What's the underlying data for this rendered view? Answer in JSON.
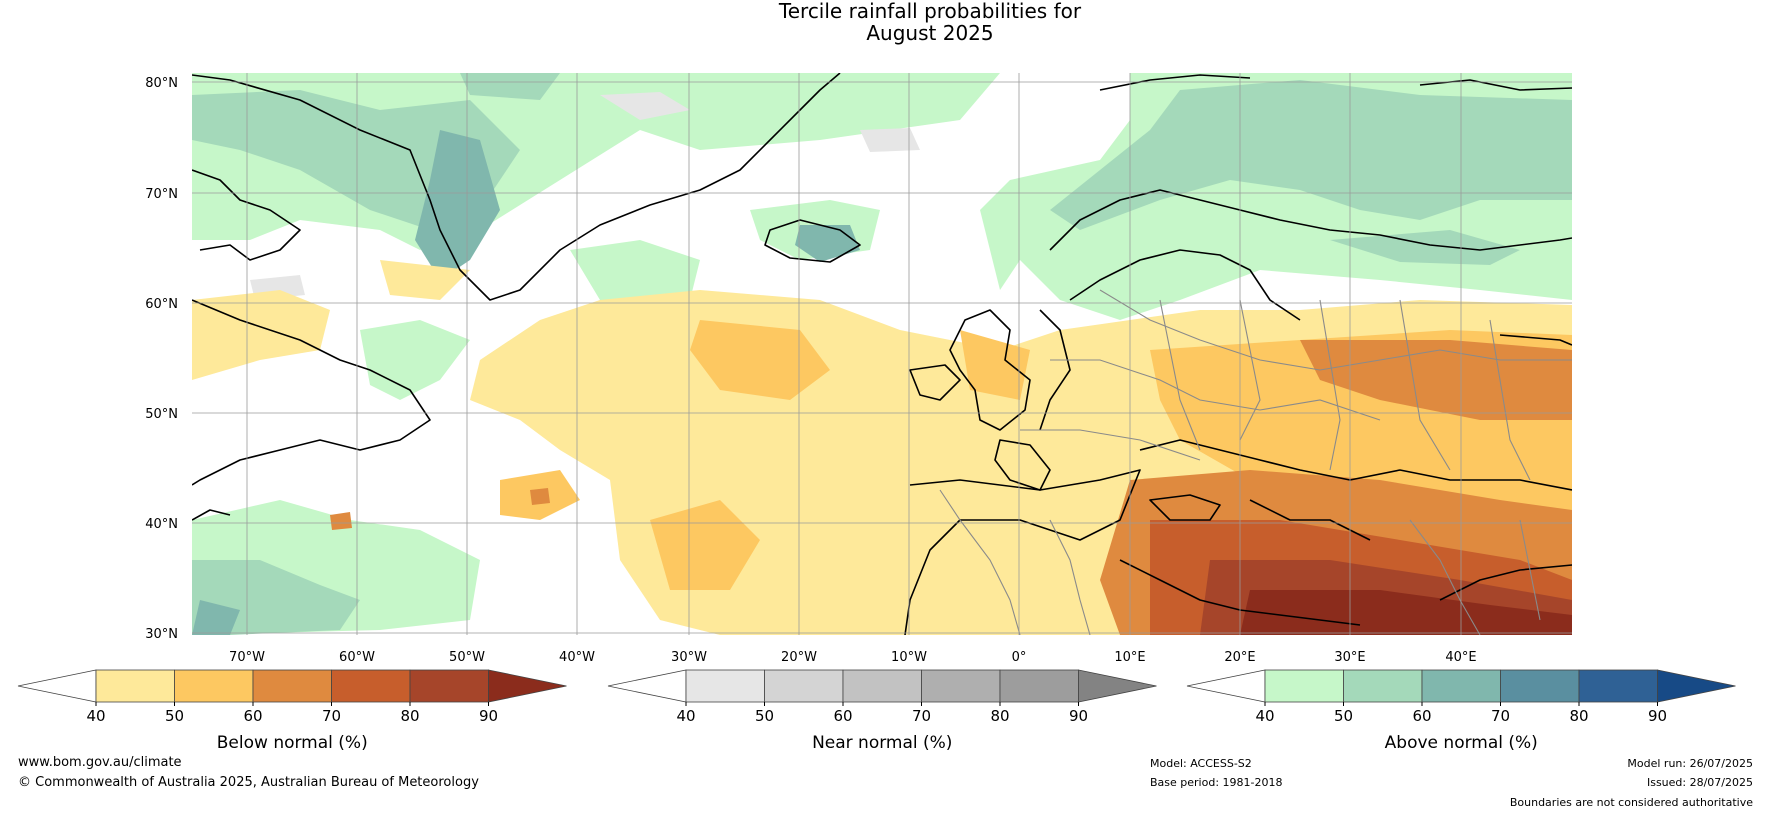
{
  "title": {
    "line1": "Tercile rainfall probabilities for",
    "line2": "August 2025"
  },
  "map": {
    "lat_labels": [
      "80°N",
      "70°N",
      "60°N",
      "50°N",
      "40°N",
      "30°N"
    ],
    "lon_labels": [
      "70°W",
      "60°W",
      "50°W",
      "40°W",
      "30°W",
      "20°W",
      "10°W",
      "0°",
      "10°E",
      "20°E",
      "30°E",
      "40°E"
    ],
    "gridlines": true
  },
  "colorbars": [
    {
      "title": "Below normal (%)",
      "ticks": [
        "40",
        "50",
        "60",
        "70",
        "80",
        "90"
      ],
      "colors": [
        "#ffffff",
        "#fee99a",
        "#fdc861",
        "#df8a3f",
        "#c75e2c",
        "#a6452a",
        "#8b2c1c"
      ]
    },
    {
      "title": "Near normal (%)",
      "ticks": [
        "40",
        "50",
        "60",
        "70",
        "80",
        "90"
      ],
      "colors": [
        "#ffffff",
        "#e6e6e6",
        "#d4d4d4",
        "#c2c2c2",
        "#afafaf",
        "#9d9d9d",
        "#838383"
      ]
    },
    {
      "title": "Above normal (%)",
      "ticks": [
        "40",
        "50",
        "60",
        "70",
        "80",
        "90"
      ],
      "colors": [
        "#ffffff",
        "#c6f7c9",
        "#a4d9ba",
        "#80b7ad",
        "#5a8fa0",
        "#2f6195",
        "#174a86"
      ]
    }
  ],
  "footer": {
    "website": "www.bom.gov.au/climate",
    "copyright": "© Commonwealth of Australia 2025, Australian Bureau of Meteorology",
    "model": "Model: ACCESS-S2",
    "base_period": "Base period: 1981-2018",
    "model_run": "Model run: 26/07/2025",
    "issued": "Issued: 28/07/2025",
    "disclaimer": "Boundaries are not considered authoritative"
  }
}
